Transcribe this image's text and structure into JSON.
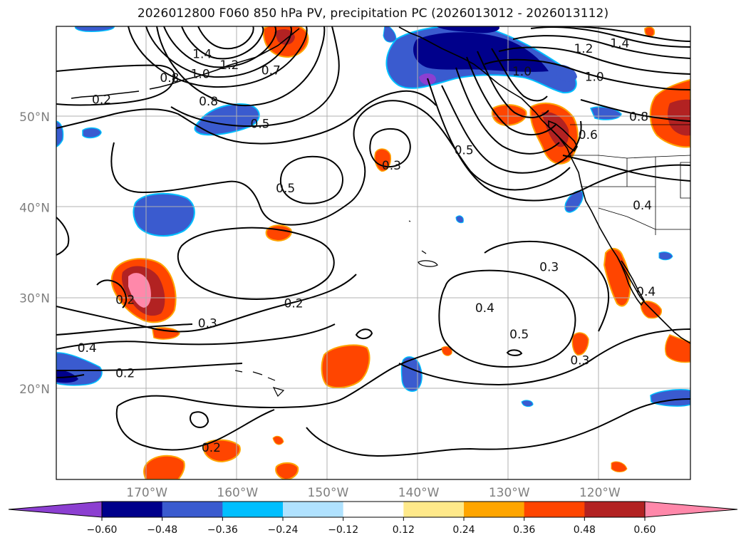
{
  "title": "2026012800 F060 850 hPa PV, precipitation PC (2026013012 - 2026013112)",
  "lat_ticks": [
    {
      "value": 50,
      "label": "50°N"
    },
    {
      "value": 40,
      "label": "40°N"
    },
    {
      "value": 30,
      "label": "30°N"
    },
    {
      "value": 20,
      "label": "20°N"
    }
  ],
  "lon_ticks": [
    {
      "value": -170,
      "label": "170°W"
    },
    {
      "value": -160,
      "label": "160°W"
    },
    {
      "value": -150,
      "label": "150°W"
    },
    {
      "value": -140,
      "label": "140°W"
    },
    {
      "value": -130,
      "label": "130°W"
    },
    {
      "value": -120,
      "label": "120°W"
    }
  ],
  "colorbar": {
    "colors": [
      "#8c3fd1",
      "#00008b",
      "#3a5bcf",
      "#00bfff",
      "#b0e2ff",
      "#ffffff",
      "#ffe98a",
      "#ffa500",
      "#ff4500",
      "#b22222",
      "#ff88aa"
    ],
    "ticks": [
      "−0.60",
      "−0.48",
      "−0.36",
      "−0.24",
      "−0.12",
      "0.12",
      "0.24",
      "0.36",
      "0.48",
      "0.60"
    ]
  },
  "contour_labels": [
    {
      "text": "1.4",
      "lon": -163.9,
      "lat": 56.8
    },
    {
      "text": "1.2",
      "lon": -160.9,
      "lat": 55.6
    },
    {
      "text": "1.0",
      "lon": -164.1,
      "lat": 54.6
    },
    {
      "text": "0.8",
      "lon": -167.5,
      "lat": 54.2
    },
    {
      "text": "0.8",
      "lon": -163.2,
      "lat": 51.6
    },
    {
      "text": "0.7",
      "lon": -156.3,
      "lat": 55.0
    },
    {
      "text": "0.5",
      "lon": -157.5,
      "lat": 49.1
    },
    {
      "text": "0.2",
      "lon": -175.0,
      "lat": 51.8
    },
    {
      "text": "0.5",
      "lon": -154.7,
      "lat": 42.0
    },
    {
      "text": "0.3",
      "lon": -143.0,
      "lat": 44.5
    },
    {
      "text": "0.5",
      "lon": -135.0,
      "lat": 46.2
    },
    {
      "text": "1.0",
      "lon": -128.6,
      "lat": 54.9
    },
    {
      "text": "1.2",
      "lon": -121.8,
      "lat": 57.4
    },
    {
      "text": "1.4",
      "lon": -117.8,
      "lat": 58.0
    },
    {
      "text": "1.0",
      "lon": -120.6,
      "lat": 54.3
    },
    {
      "text": "0.8",
      "lon": -115.7,
      "lat": 49.9
    },
    {
      "text": "0.6",
      "lon": -121.3,
      "lat": 47.9
    },
    {
      "text": "0.4",
      "lon": -115.3,
      "lat": 40.1
    },
    {
      "text": "0.3",
      "lon": -125.6,
      "lat": 33.3
    },
    {
      "text": "0.4",
      "lon": -114.9,
      "lat": 30.6
    },
    {
      "text": "0.2",
      "lon": -172.4,
      "lat": 29.7
    },
    {
      "text": "0.2",
      "lon": -153.8,
      "lat": 29.3
    },
    {
      "text": "0.3",
      "lon": -163.3,
      "lat": 27.1
    },
    {
      "text": "0.4",
      "lon": -176.6,
      "lat": 24.4
    },
    {
      "text": "0.2",
      "lon": -172.4,
      "lat": 21.6
    },
    {
      "text": "0.4",
      "lon": -132.7,
      "lat": 28.8
    },
    {
      "text": "0.5",
      "lon": -128.9,
      "lat": 25.9
    },
    {
      "text": "0.3",
      "lon": -122.2,
      "lat": 23.0
    },
    {
      "text": "0.2",
      "lon": -162.9,
      "lat": 13.4
    }
  ]
}
